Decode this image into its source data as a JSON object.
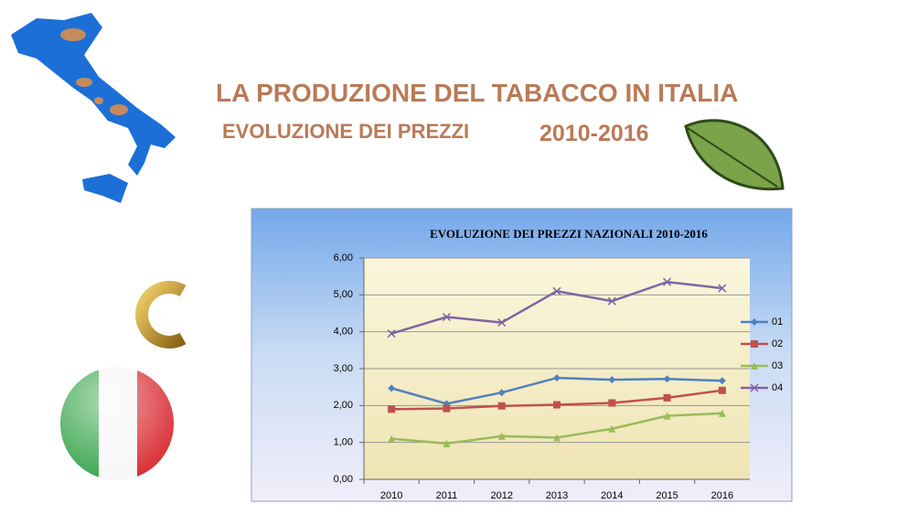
{
  "header": {
    "title": "LA PRODUZIONE DEL TABACCO IN ITALIA",
    "subtitle": "EVOLUZIONE DEI PREZZI",
    "period": "2010-2016"
  },
  "chart_data": {
    "type": "line",
    "title": "EVOLUZIONE DEI PREZZI NAZIONALI 2010-2016",
    "categories": [
      "2010",
      "2011",
      "2012",
      "2013",
      "2014",
      "2015",
      "2016"
    ],
    "series": [
      {
        "name": "01",
        "color": "#4f81bd",
        "marker": "diamond",
        "values": [
          2.47,
          2.05,
          2.35,
          2.75,
          2.7,
          2.72,
          2.67
        ]
      },
      {
        "name": "02",
        "color": "#c0504d",
        "marker": "square",
        "values": [
          1.9,
          1.92,
          1.99,
          2.02,
          2.07,
          2.21,
          2.41
        ]
      },
      {
        "name": "03",
        "color": "#9bbb59",
        "marker": "triangle",
        "values": [
          1.1,
          0.97,
          1.17,
          1.13,
          1.37,
          1.72,
          1.79
        ]
      },
      {
        "name": "04",
        "color": "#8064a2",
        "marker": "x",
        "values": [
          3.95,
          4.4,
          4.25,
          5.1,
          4.83,
          5.35,
          5.18
        ]
      }
    ],
    "ylim": [
      0,
      6
    ],
    "yticks": [
      {
        "value": 0,
        "label": "0,00"
      },
      {
        "value": 1,
        "label": "1,00"
      },
      {
        "value": 2,
        "label": "2,00"
      },
      {
        "value": 3,
        "label": "3,00"
      },
      {
        "value": 4,
        "label": "4,00"
      },
      {
        "value": 5,
        "label": "5,00"
      },
      {
        "value": 6,
        "label": "6,00"
      }
    ],
    "grid": true,
    "legend": "right"
  }
}
